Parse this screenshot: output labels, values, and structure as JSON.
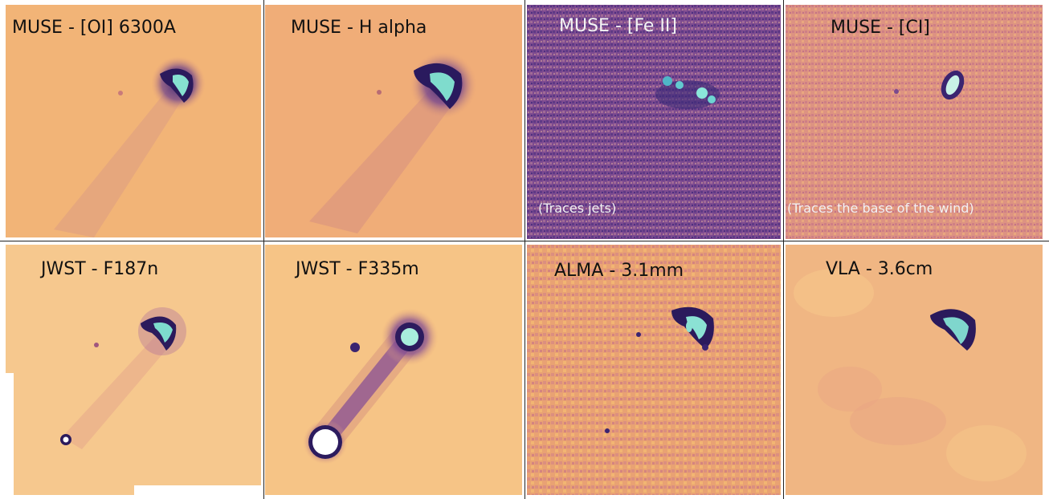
{
  "panels": [
    {
      "title": "MUSE - [OI] 6300A"
    },
    {
      "title": "MUSE - H alpha"
    },
    {
      "title": "MUSE - [Fe II]",
      "note": "(Traces jets)"
    },
    {
      "title": "MUSE - [CI]",
      "note": "(Traces the base of the wind)"
    },
    {
      "title": "JWST - F187n"
    },
    {
      "title": "JWST - F335m"
    },
    {
      "title": "ALMA - 3.1mm"
    },
    {
      "title": "VLA - 3.6cm"
    }
  ],
  "colors": {
    "background_light": "#f3b877",
    "background_purple": "#7f4a8f",
    "emission_dark": "#2a1b5e",
    "emission_peak": "#7fe3d8"
  }
}
